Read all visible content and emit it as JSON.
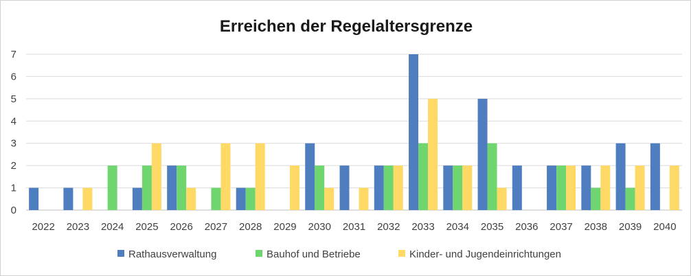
{
  "chart_data": {
    "type": "bar",
    "title": "Erreichen der Regelaltersgrenze",
    "xlabel": "",
    "ylabel": "",
    "ylim": [
      0,
      7
    ],
    "yticks": [
      0,
      1,
      2,
      3,
      4,
      5,
      6,
      7
    ],
    "grid": true,
    "legend": "bottom",
    "categories": [
      "2022",
      "2023",
      "2024",
      "2025",
      "2026",
      "2027",
      "2028",
      "2029",
      "2030",
      "2031",
      "2032",
      "2033",
      "2034",
      "2035",
      "2036",
      "2037",
      "2038",
      "2039",
      "2040"
    ],
    "series": [
      {
        "name": "Rathausverwaltung",
        "color": "#4F7EC0",
        "values": [
          1,
          1,
          0,
          1,
          2,
          0,
          1,
          0,
          3,
          2,
          2,
          7,
          2,
          5,
          2,
          2,
          2,
          3,
          3
        ]
      },
      {
        "name": "Bauhof und Betriebe",
        "color": "#6FD66F",
        "values": [
          0,
          0,
          2,
          2,
          2,
          1,
          1,
          0,
          2,
          0,
          2,
          3,
          2,
          3,
          0,
          2,
          1,
          1,
          0
        ]
      },
      {
        "name": "Kinder- und Jugendeinrichtungen",
        "color": "#FFD966",
        "values": [
          0,
          1,
          0,
          3,
          1,
          3,
          3,
          2,
          1,
          1,
          2,
          5,
          2,
          1,
          0,
          2,
          2,
          2,
          2
        ]
      }
    ]
  }
}
